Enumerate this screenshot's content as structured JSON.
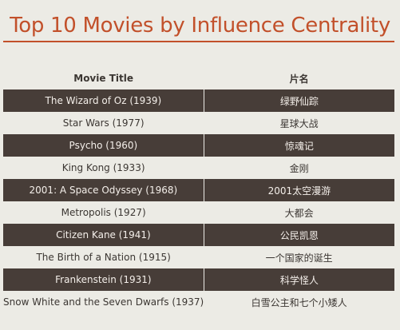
{
  "page": {
    "title": "Top 10 Movies by Influence Centrality"
  },
  "table": {
    "headers": [
      "Movie Title",
      "片名"
    ],
    "rows": [
      {
        "title": "The Wizard of Oz (1939)",
        "cn": "绿野仙踪"
      },
      {
        "title": "Star Wars (1977)",
        "cn": "星球大战"
      },
      {
        "title": "Psycho (1960)",
        "cn": "惊魂记"
      },
      {
        "title": "King Kong (1933)",
        "cn": "金刚"
      },
      {
        "title": "2001: A Space Odyssey (1968)",
        "cn": "2001太空漫游"
      },
      {
        "title": "Metropolis (1927)",
        "cn": "大都会"
      },
      {
        "title": "Citizen Kane (1941)",
        "cn": "公民凯恩"
      },
      {
        "title": "The Birth of a Nation (1915)",
        "cn": "一个国家的诞生"
      },
      {
        "title": "Frankenstein (1931)",
        "cn": "科学怪人"
      },
      {
        "title": "Snow White and the Seven Dwarfs (1937)",
        "cn": "白雪公主和七个小矮人"
      }
    ]
  },
  "colors": {
    "accent": "#c2502a",
    "row_dark": "#473d38",
    "background": "#ecebe5"
  }
}
